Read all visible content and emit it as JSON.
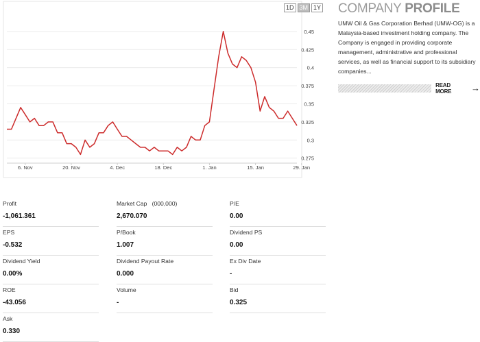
{
  "chart": {
    "range_buttons": [
      {
        "label": "1D",
        "active": false
      },
      {
        "label": "3M",
        "active": true
      },
      {
        "label": "1Y",
        "active": false
      }
    ],
    "line_color": "#cc2a2a"
  },
  "chart_data": {
    "type": "line",
    "title": "",
    "xlabel": "",
    "ylabel": "",
    "ylim": [
      0.27,
      0.465
    ],
    "yticks": [
      0.275,
      0.3,
      0.325,
      0.35,
      0.375,
      0.4,
      0.425,
      0.45
    ],
    "ytick_labels": [
      "0.275",
      "0.3",
      "0.325",
      "0.35",
      "0.375",
      "0.4",
      "0.425",
      "0.45"
    ],
    "xtick_labels": [
      "6. Nov",
      "20. Nov",
      "4. Dec",
      "18. Dec",
      "1. Jan",
      "15. Jan",
      "29. Jan"
    ],
    "xtick_index": [
      4,
      14,
      24,
      34,
      44,
      54,
      64
    ],
    "grid": true,
    "series": [
      {
        "values": [
          0.315,
          0.315,
          0.33,
          0.345,
          0.335,
          0.325,
          0.33,
          0.32,
          0.32,
          0.325,
          0.325,
          0.31,
          0.31,
          0.295,
          0.295,
          0.29,
          0.28,
          0.3,
          0.29,
          0.295,
          0.31,
          0.31,
          0.32,
          0.325,
          0.315,
          0.305,
          0.305,
          0.3,
          0.295,
          0.29,
          0.29,
          0.285,
          0.29,
          0.285,
          0.285,
          0.285,
          0.28,
          0.29,
          0.285,
          0.29,
          0.305,
          0.3,
          0.3,
          0.32,
          0.325,
          0.37,
          0.415,
          0.45,
          0.42,
          0.405,
          0.4,
          0.415,
          0.41,
          0.4,
          0.38,
          0.34,
          0.36,
          0.345,
          0.34,
          0.33,
          0.33,
          0.34,
          0.33,
          0.32
        ]
      }
    ]
  },
  "profile": {
    "title_light": "COMPANY",
    "title_bold": "PROFILE",
    "description": "UMW Oil & Gas Corporation Berhad (UMW-OG) is a Malaysia-based investment holding company. The Company is engaged in providing corporate management, administrative and professional services, as well as financial support to its subsidiary companies...",
    "read_more": "READ MORE",
    "arrow": "→"
  },
  "stats": {
    "profit": {
      "label": "Profit",
      "value": "-1,061.361"
    },
    "market_cap": {
      "label": "Market Cap   (000,000)",
      "value": "2,670.070"
    },
    "pe": {
      "label": "P/E",
      "value": "0.00"
    },
    "eps": {
      "label": "EPS",
      "value": "-0.532"
    },
    "pbook": {
      "label": "P/Book",
      "value": "1.007"
    },
    "dividend_ps": {
      "label": "Dividend PS",
      "value": "0.00"
    },
    "dividend_yield": {
      "label": "Dividend Yield",
      "value": "0.00%"
    },
    "dividend_payout": {
      "label": "Dividend Payout Rate",
      "value": "0.000"
    },
    "ex_div_date": {
      "label": "Ex Div Date",
      "value": "-"
    },
    "roe": {
      "label": "ROE",
      "value": "-43.056"
    },
    "volume": {
      "label": "Volume",
      "value": "-"
    },
    "bid": {
      "label": "Bid",
      "value": "0.325"
    },
    "ask": {
      "label": "Ask",
      "value": "0.330"
    }
  }
}
